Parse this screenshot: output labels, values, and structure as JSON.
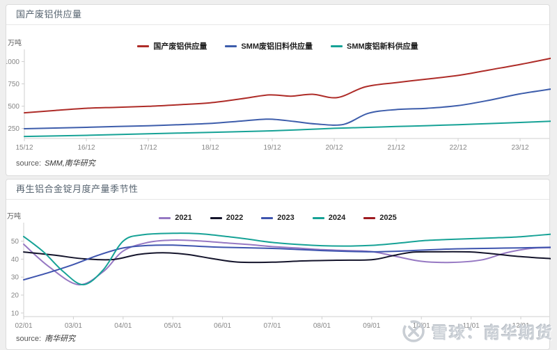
{
  "watermark": {
    "text": "雪球：南华期货",
    "logo_icon": "snowball-logo",
    "color": "#c9ced4"
  },
  "chart_data": [
    {
      "type": "line",
      "title": "国产废铝供应量",
      "unit": "万吨",
      "source_label": "source:",
      "source": "SMM,南华研究",
      "legend_position": "top-center",
      "grid": false,
      "x_tick_labels": [
        "15/12",
        "16/12",
        "17/12",
        "18/12",
        "19/12",
        "20/12",
        "21/12",
        "22/12",
        "23/12"
      ],
      "x_tick_positions": [
        0,
        1,
        2,
        3,
        4,
        5,
        6,
        7,
        8
      ],
      "xlim": [
        0,
        8.55
      ],
      "ylim": [
        137,
        1090
      ],
      "yticks": [
        250,
        500,
        750,
        1000
      ],
      "series": [
        {
          "name": "国产废铝供应量",
          "color": "#ae2c28",
          "x": [
            0,
            0.5,
            1,
            1.5,
            2,
            2.5,
            3,
            3.5,
            3.95,
            4.3,
            4.65,
            5.05,
            5.5,
            6,
            6.5,
            7,
            7.5,
            8,
            8.55
          ],
          "values": [
            425,
            452,
            476,
            487,
            498,
            516,
            538,
            582,
            626,
            612,
            633,
            596,
            716,
            764,
            804,
            845,
            906,
            968,
            1045
          ]
        },
        {
          "name": "SMM废铝旧料供应量",
          "color": "#3d5dab",
          "x": [
            0,
            0.5,
            1,
            1.5,
            2,
            2.5,
            3,
            3.5,
            3.95,
            4.35,
            4.7,
            5.15,
            5.55,
            6,
            6.5,
            7,
            7.5,
            8,
            8.55
          ],
          "values": [
            246,
            254,
            262,
            271,
            280,
            292,
            306,
            332,
            354,
            328,
            300,
            295,
            420,
            461,
            476,
            506,
            566,
            638,
            697
          ]
        },
        {
          "name": "SMM废铝新料供应量",
          "color": "#16a296",
          "x": [
            0,
            1,
            2,
            3,
            4,
            4.5,
            5,
            5.5,
            6,
            6.5,
            7,
            7.5,
            8,
            8.55
          ],
          "values": [
            160,
            172,
            190,
            206,
            223,
            236,
            251,
            261,
            271,
            281,
            292,
            304,
            317,
            332
          ]
        }
      ]
    },
    {
      "type": "line",
      "title": "再生铝合金锭月度产量季节性",
      "unit": "万吨",
      "source_label": "source:",
      "source": "南华研究",
      "legend_position": "top-center",
      "grid": false,
      "x_tick_labels": [
        "02/01",
        "03/01",
        "04/01",
        "05/01",
        "06/01",
        "07/01",
        "08/01",
        "09/01",
        "10/01",
        "11/01",
        "12/01"
      ],
      "x_tick_positions": [
        2,
        3,
        4,
        5,
        6,
        7,
        8,
        9,
        10,
        11,
        12
      ],
      "xlim": [
        2,
        12.6
      ],
      "ylim": [
        8,
        58
      ],
      "yticks": [
        10,
        20,
        30,
        40,
        50
      ],
      "series": [
        {
          "name": "2021",
          "color": "#9678c3",
          "x": [
            2,
            2.5,
            3.1,
            3.6,
            4,
            4.5,
            5,
            5.5,
            6,
            6.5,
            7,
            7.5,
            8,
            8.5,
            9,
            9.5,
            10,
            10.6,
            11.2,
            11.7,
            12.2,
            12.6
          ],
          "values": [
            48.3,
            36,
            25.8,
            33,
            44.5,
            49.3,
            50.6,
            50.2,
            49.2,
            48.2,
            47,
            46.2,
            45.3,
            44.8,
            44.2,
            41.5,
            38.8,
            38.2,
            39.5,
            43.5,
            46,
            46.4
          ]
        },
        {
          "name": "2022",
          "color": "#14142b",
          "x": [
            2,
            2.6,
            3.2,
            3.8,
            4.3,
            4.8,
            5.3,
            5.8,
            6.3,
            7,
            7.6,
            8.3,
            9,
            9.4,
            9.8,
            10.3,
            11,
            11.5,
            12,
            12.6
          ],
          "values": [
            44,
            42.3,
            40.2,
            39.8,
            42.6,
            43.6,
            42.6,
            40.3,
            38.4,
            38.3,
            39,
            39.4,
            39.7,
            41.8,
            43.8,
            44.1,
            44,
            42.8,
            41.4,
            40.3
          ]
        },
        {
          "name": "2023",
          "color": "#3e54ae",
          "x": [
            2,
            2.5,
            3,
            3.5,
            4,
            4.5,
            5,
            5.5,
            6,
            7,
            7.5,
            8,
            8.5,
            9,
            9.5,
            10,
            10.5,
            11,
            11.5,
            12,
            12.6
          ],
          "values": [
            28.5,
            32.5,
            37,
            42.2,
            46.2,
            47.6,
            47.8,
            47.2,
            46.6,
            46,
            45.4,
            44.8,
            44.3,
            44.1,
            44.4,
            45,
            45.6,
            45.9,
            46.1,
            46.3,
            46.6
          ]
        },
        {
          "name": "2024",
          "color": "#16a296",
          "x": [
            2,
            2.4,
            2.8,
            3.2,
            3.6,
            4,
            4.4,
            5,
            5.5,
            6,
            6.5,
            7,
            7.5,
            8,
            8.5,
            9,
            9.5,
            10,
            10.5,
            11,
            11.5,
            12,
            12.6
          ],
          "values": [
            52.6,
            44,
            33,
            25.8,
            34,
            50,
            53.6,
            54.4,
            54.2,
            52.9,
            51.2,
            49.3,
            48.2,
            47.5,
            47.3,
            47.7,
            48.8,
            50.2,
            50.9,
            51.4,
            51.9,
            52.5,
            53.9
          ]
        },
        {
          "name": "2025",
          "color": "#9e1a20",
          "x": [],
          "values": []
        }
      ]
    }
  ]
}
